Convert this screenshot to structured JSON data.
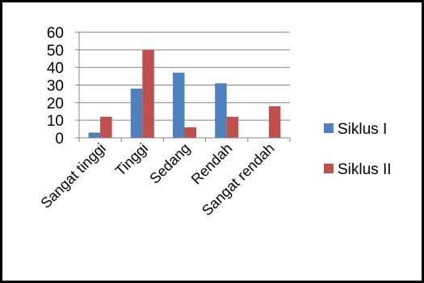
{
  "chart_data": {
    "type": "bar",
    "categories": [
      "Sangat tinggi",
      "Tinggi",
      "Sedang",
      "Rendah",
      "Sangat rendah"
    ],
    "series": [
      {
        "name": "Siklus I",
        "values": [
          3,
          28,
          37,
          31,
          0
        ],
        "color": "#4F81BD"
      },
      {
        "name": "Siklus II",
        "values": [
          12,
          50,
          6,
          12,
          18
        ],
        "color": "#C0504D"
      }
    ],
    "yticks": [
      0,
      10,
      20,
      30,
      40,
      50,
      60
    ],
    "ylim": [
      0,
      60
    ],
    "grid": true,
    "legend_position": "right"
  }
}
